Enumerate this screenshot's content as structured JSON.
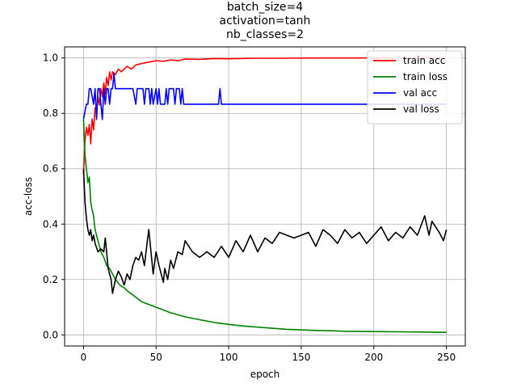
{
  "chart_data": {
    "type": "line",
    "title_lines": [
      "batch_size=4",
      "activation=tanh",
      "nb_classes=2"
    ],
    "xlabel": "epoch",
    "ylabel": "acc-loss",
    "xlim": [
      -13,
      263
    ],
    "ylim": [
      -0.04,
      1.04
    ],
    "xticks": [
      0,
      50,
      100,
      150,
      200,
      250
    ],
    "yticks": [
      0.0,
      0.2,
      0.4,
      0.6,
      0.8,
      1.0
    ],
    "ytick_labels": [
      "0.0",
      "0.2",
      "0.4",
      "0.6",
      "0.8",
      "1.0"
    ],
    "grid": true,
    "legend_position": "top-right",
    "series": [
      {
        "name": "train acc",
        "color": "#ff0000",
        "x": [
          0,
          1,
          2,
          3,
          4,
          5,
          6,
          7,
          8,
          9,
          10,
          11,
          12,
          13,
          14,
          15,
          16,
          17,
          18,
          19,
          20,
          22,
          24,
          26,
          28,
          30,
          33,
          36,
          40,
          45,
          50,
          55,
          60,
          65,
          70,
          80,
          90,
          100,
          120,
          140,
          160,
          200,
          250
        ],
        "y": [
          0.58,
          0.7,
          0.75,
          0.72,
          0.76,
          0.69,
          0.78,
          0.74,
          0.82,
          0.8,
          0.86,
          0.83,
          0.89,
          0.86,
          0.91,
          0.87,
          0.93,
          0.9,
          0.95,
          0.92,
          0.95,
          0.94,
          0.96,
          0.95,
          0.96,
          0.97,
          0.96,
          0.975,
          0.98,
          0.985,
          0.99,
          0.988,
          0.993,
          0.99,
          0.996,
          0.995,
          0.998,
          0.997,
          0.999,
          0.999,
          1.0,
          1.0,
          1.0
        ]
      },
      {
        "name": "train loss",
        "color": "#008000",
        "x": [
          0,
          1,
          2,
          3,
          4,
          5,
          6,
          7,
          8,
          9,
          10,
          12,
          14,
          16,
          18,
          20,
          22,
          25,
          28,
          30,
          35,
          40,
          45,
          50,
          55,
          60,
          70,
          80,
          90,
          100,
          110,
          120,
          130,
          140,
          150,
          160,
          170,
          180,
          200,
          220,
          240,
          250
        ],
        "y": [
          0.78,
          0.65,
          0.6,
          0.55,
          0.57,
          0.48,
          0.45,
          0.43,
          0.38,
          0.36,
          0.34,
          0.3,
          0.28,
          0.25,
          0.24,
          0.22,
          0.2,
          0.18,
          0.17,
          0.16,
          0.14,
          0.12,
          0.11,
          0.1,
          0.09,
          0.08,
          0.065,
          0.055,
          0.045,
          0.038,
          0.032,
          0.028,
          0.024,
          0.02,
          0.018,
          0.016,
          0.015,
          0.013,
          0.012,
          0.011,
          0.01,
          0.009
        ]
      },
      {
        "name": "val acc",
        "color": "#0000ff",
        "x": [
          0,
          2,
          3,
          4,
          5,
          7,
          8,
          9,
          10,
          11,
          13,
          14,
          15,
          16,
          17,
          18,
          19,
          20,
          21,
          22,
          24,
          25,
          30,
          34,
          36,
          37,
          41,
          42,
          43,
          45,
          46,
          47,
          48,
          50,
          51,
          52,
          53,
          56,
          57,
          58,
          59,
          62,
          63,
          64,
          66,
          67,
          68,
          69,
          70,
          93,
          94,
          95,
          250
        ],
        "y": [
          0.78,
          0.833,
          0.833,
          0.889,
          0.889,
          0.833,
          0.889,
          0.778,
          0.889,
          0.889,
          0.778,
          0.889,
          0.833,
          0.889,
          0.889,
          0.833,
          0.889,
          0.889,
          0.944,
          0.889,
          0.889,
          0.889,
          0.889,
          0.889,
          0.833,
          0.889,
          0.889,
          0.833,
          0.889,
          0.889,
          0.833,
          0.889,
          0.833,
          0.889,
          0.833,
          0.889,
          0.833,
          0.833,
          0.889,
          0.833,
          0.889,
          0.889,
          0.833,
          0.889,
          0.889,
          0.833,
          0.889,
          0.833,
          0.833,
          0.833,
          0.889,
          0.833,
          0.833
        ]
      },
      {
        "name": "val loss",
        "color": "#000000",
        "x": [
          0,
          1,
          2,
          3,
          4,
          5,
          6,
          7,
          8,
          10,
          12,
          14,
          15,
          17,
          19,
          20,
          22,
          24,
          26,
          28,
          30,
          32,
          34,
          36,
          38,
          40,
          42,
          44,
          45,
          48,
          50,
          52,
          55,
          56,
          58,
          60,
          62,
          65,
          68,
          70,
          75,
          80,
          85,
          90,
          95,
          100,
          105,
          110,
          115,
          120,
          125,
          130,
          135,
          140,
          145,
          150,
          155,
          160,
          165,
          170,
          175,
          180,
          185,
          190,
          195,
          200,
          205,
          210,
          215,
          220,
          225,
          230,
          235,
          238,
          240,
          245,
          248,
          250
        ],
        "y": [
          0.6,
          0.48,
          0.42,
          0.38,
          0.36,
          0.38,
          0.34,
          0.36,
          0.33,
          0.3,
          0.31,
          0.3,
          0.35,
          0.24,
          0.2,
          0.15,
          0.2,
          0.23,
          0.21,
          0.18,
          0.22,
          0.2,
          0.25,
          0.28,
          0.27,
          0.3,
          0.25,
          0.34,
          0.38,
          0.22,
          0.3,
          0.25,
          0.19,
          0.24,
          0.2,
          0.27,
          0.24,
          0.3,
          0.29,
          0.34,
          0.3,
          0.28,
          0.3,
          0.28,
          0.32,
          0.28,
          0.34,
          0.3,
          0.36,
          0.3,
          0.35,
          0.33,
          0.37,
          0.36,
          0.35,
          0.36,
          0.37,
          0.32,
          0.38,
          0.36,
          0.33,
          0.38,
          0.35,
          0.37,
          0.33,
          0.36,
          0.39,
          0.34,
          0.37,
          0.35,
          0.39,
          0.36,
          0.43,
          0.36,
          0.41,
          0.37,
          0.34,
          0.38
        ]
      }
    ]
  }
}
